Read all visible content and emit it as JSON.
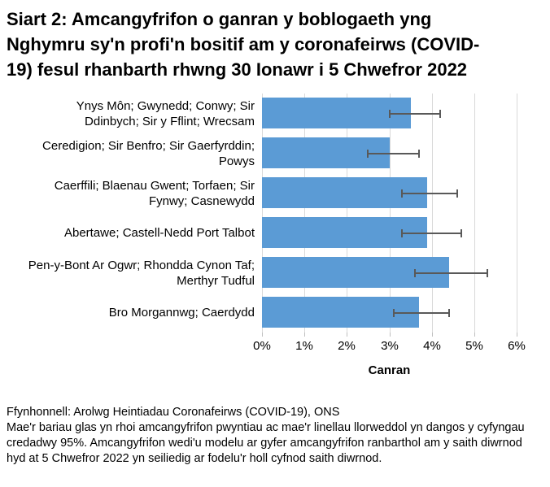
{
  "title_lines": [
    "Siart 2: Amcangyfrifon o ganran y boblogaeth yng",
    "Nghymru sy'n profi'n bositif am y coronafeirws (COVID-",
    "19) fesul rhanbarth rhwng 30 Ionawr i 5 Chwefror 2022"
  ],
  "chart_data": {
    "type": "bar",
    "orientation": "horizontal",
    "title": "Siart 2: Amcangyfrifon o ganran y boblogaeth yng Nghymru sy'n profi'n bositif am y coronafeirws (COVID-19) fesul rhanbarth rhwng 30 Ionawr i 5 Chwefror 2022",
    "categories": [
      "Ynys Môn; Gwynedd; Conwy; Sir Ddinbych; Sir y Fflint; Wrecsam",
      "Ceredigion; Sir Benfro; Sir Gaerfyrddin; Powys",
      "Caerffili; Blaenau Gwent; Torfaen; Sir Fynwy; Casnewydd",
      "Abertawe; Castell-Nedd Port Talbot",
      "Pen-y-Bont Ar Ogwr; Rhondda Cynon Taf; Merthyr Tudful",
      "Bro Morgannwg; Caerdydd"
    ],
    "category_lines": [
      [
        "Ynys Môn; Gwynedd; Conwy; Sir",
        "Ddinbych; Sir y Fflint; Wrecsam"
      ],
      [
        "Ceredigion; Sir Benfro; Sir Gaerfyrddin;",
        "Powys"
      ],
      [
        "Caerffili; Blaenau Gwent; Torfaen; Sir",
        "Fynwy; Casnewydd"
      ],
      [
        "Abertawe; Castell-Nedd Port Talbot"
      ],
      [
        "Pen-y-Bont Ar Ogwr; Rhondda Cynon Taf;",
        "Merthyr Tudful"
      ],
      [
        "Bro Morgannwg; Caerdydd"
      ]
    ],
    "values": [
      3.5,
      3.0,
      3.9,
      3.9,
      4.4,
      3.7
    ],
    "ci_low": [
      3.0,
      2.5,
      3.3,
      3.3,
      3.6,
      3.1
    ],
    "ci_high": [
      4.2,
      3.7,
      4.6,
      4.7,
      5.3,
      4.4
    ],
    "xlabel": "Canran",
    "xlim": [
      0,
      6
    ],
    "xtick_labels": [
      "0%",
      "1%",
      "2%",
      "3%",
      "4%",
      "5%",
      "6%"
    ],
    "grid": true,
    "legend": "none",
    "bar_color": "#5B9BD5",
    "error_bar_color": "#595959",
    "grid_color": "#D9D9D9",
    "tick_color": "#BFBFBF"
  },
  "footer": {
    "source": "Ffynhonnell: Arolwg Heintiadau Coronafeirws (COVID-19), ONS",
    "note": "Mae'r bariau glas yn rhoi amcangyfrifon pwyntiau ac mae'r linellau llorweddol yn dangos y cyfyngau credadwy 95%. Amcangyfrifon wedi'u modelu ar gyfer amcangyfrifon ranbarthol am y saith diwrnod hyd at 5 Chwefror 2022 yn seiliedig ar fodelu'r holl cyfnod saith diwrnod."
  }
}
